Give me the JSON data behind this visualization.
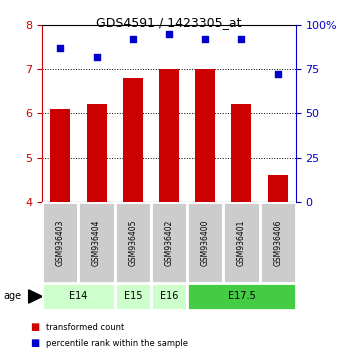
{
  "title": "GDS4591 / 1423305_at",
  "samples": [
    "GSM936403",
    "GSM936404",
    "GSM936405",
    "GSM936402",
    "GSM936400",
    "GSM936401",
    "GSM936406"
  ],
  "bar_values": [
    6.1,
    6.2,
    6.8,
    7.0,
    7.0,
    6.2,
    4.6
  ],
  "percentile_values": [
    87,
    82,
    92,
    95,
    92,
    92,
    72
  ],
  "bar_color": "#cc0000",
  "percentile_color": "#0000cc",
  "left_ylim": [
    4,
    8
  ],
  "right_ylim": [
    0,
    100
  ],
  "left_yticks": [
    4,
    5,
    6,
    7,
    8
  ],
  "right_yticks": [
    0,
    25,
    50,
    75,
    100
  ],
  "right_yticklabels": [
    "0",
    "25",
    "50",
    "75",
    "100%"
  ],
  "age_groups": [
    {
      "label": "E14",
      "samples": [
        0,
        1
      ],
      "color": "#ccffcc"
    },
    {
      "label": "E15",
      "samples": [
        2
      ],
      "color": "#ccffcc"
    },
    {
      "label": "E16",
      "samples": [
        3
      ],
      "color": "#ccffcc"
    },
    {
      "label": "E17.5",
      "samples": [
        4,
        5,
        6
      ],
      "color": "#44cc44"
    }
  ],
  "legend_items": [
    {
      "label": "transformed count",
      "color": "#cc0000"
    },
    {
      "label": "percentile rank within the sample",
      "color": "#0000cc"
    }
  ],
  "age_label": "age",
  "sample_box_color": "#cccccc",
  "dotted_yticks": [
    5,
    6,
    7
  ],
  "bar_width": 0.55
}
